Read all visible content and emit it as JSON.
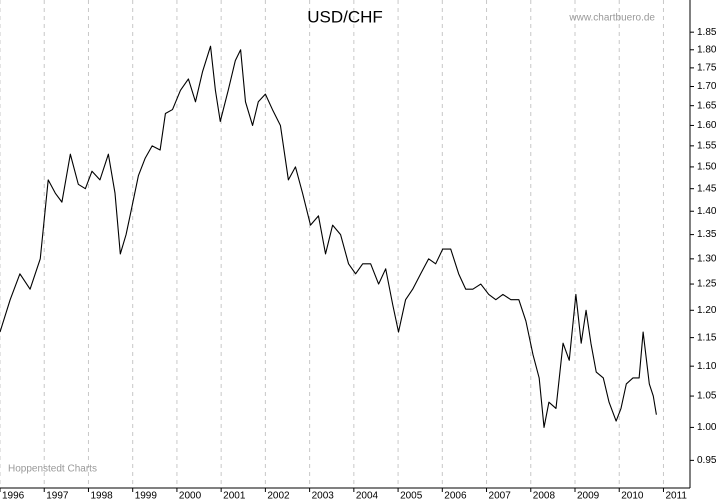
{
  "chart_data": {
    "type": "line",
    "title": "USD/CHF",
    "source": "www.chartbuero.de",
    "credit": "Hoppenstedt Charts",
    "log_scale_y": true,
    "grid": "x",
    "xlim": [
      1996,
      2011.6
    ],
    "ylim": [
      0.91,
      1.945
    ],
    "xticks": [
      1996,
      1997,
      1998,
      1999,
      2000,
      2001,
      2002,
      2003,
      2004,
      2005,
      2006,
      2007,
      2008,
      2009,
      2010,
      2011
    ],
    "yticks": [
      0.95,
      {
        "value": 1,
        "label": "1.00"
      },
      1.05,
      {
        "value": 1.1,
        "label": "1.10"
      },
      1.15,
      {
        "value": 1.2,
        "label": "1.20"
      },
      1.25,
      {
        "value": 1.3,
        "label": "1.30"
      },
      1.35,
      {
        "value": 1.4,
        "label": "1.40"
      },
      1.45,
      {
        "value": 1.5,
        "label": "1.50"
      },
      1.55,
      {
        "value": 1.6,
        "label": "1.60"
      },
      1.65,
      {
        "value": 1.7,
        "label": "1.70"
      },
      1.75,
      {
        "value": 1.8,
        "label": "1.80"
      },
      1.85
    ],
    "series": [
      {
        "name": "USD/CHF",
        "color": "#000000",
        "x": [
          1996.0,
          1996.23,
          1996.45,
          1996.68,
          1996.91,
          1997.09,
          1997.25,
          1997.4,
          1997.59,
          1997.77,
          1997.93,
          1998.08,
          1998.26,
          1998.45,
          1998.6,
          1998.72,
          1998.85,
          1998.94,
          1999.13,
          1999.28,
          1999.44,
          1999.62,
          1999.74,
          1999.9,
          2000.08,
          2000.26,
          2000.42,
          2000.58,
          2000.76,
          2000.87,
          2000.98,
          2001.16,
          2001.32,
          2001.44,
          2001.55,
          2001.71,
          2001.84,
          2002.0,
          2002.16,
          2002.34,
          2002.52,
          2002.68,
          2002.84,
          2003.02,
          2003.2,
          2003.36,
          2003.52,
          2003.7,
          2003.88,
          2004.04,
          2004.2,
          2004.38,
          2004.56,
          2004.72,
          2004.88,
          2005.01,
          2005.17,
          2005.33,
          2005.51,
          2005.69,
          2005.85,
          2006.01,
          2006.19,
          2006.37,
          2006.53,
          2006.69,
          2006.87,
          2007.05,
          2007.21,
          2007.37,
          2007.55,
          2007.73,
          2007.89,
          2008.05,
          2008.19,
          2008.3,
          2008.41,
          2008.57,
          2008.73,
          2008.87,
          2009.02,
          2009.14,
          2009.25,
          2009.36,
          2009.48,
          2009.64,
          2009.77,
          2009.93,
          2010.04,
          2010.16,
          2010.31,
          2010.45,
          2010.54,
          2010.68,
          2010.77,
          2010.84
        ],
        "values": [
          1.16,
          1.22,
          1.27,
          1.24,
          1.3,
          1.47,
          1.44,
          1.42,
          1.53,
          1.46,
          1.45,
          1.49,
          1.47,
          1.53,
          1.44,
          1.31,
          1.35,
          1.39,
          1.48,
          1.52,
          1.55,
          1.54,
          1.63,
          1.64,
          1.69,
          1.72,
          1.66,
          1.74,
          1.81,
          1.69,
          1.61,
          1.69,
          1.77,
          1.8,
          1.66,
          1.6,
          1.66,
          1.68,
          1.64,
          1.6,
          1.47,
          1.5,
          1.44,
          1.37,
          1.39,
          1.31,
          1.37,
          1.35,
          1.29,
          1.27,
          1.29,
          1.29,
          1.25,
          1.28,
          1.21,
          1.16,
          1.22,
          1.24,
          1.27,
          1.3,
          1.29,
          1.32,
          1.32,
          1.27,
          1.24,
          1.24,
          1.25,
          1.23,
          1.22,
          1.23,
          1.22,
          1.22,
          1.18,
          1.12,
          1.08,
          1.0,
          1.04,
          1.03,
          1.14,
          1.11,
          1.23,
          1.14,
          1.2,
          1.14,
          1.09,
          1.08,
          1.04,
          1.01,
          1.03,
          1.07,
          1.08,
          1.08,
          1.16,
          1.07,
          1.05,
          1.02
        ]
      }
    ]
  }
}
